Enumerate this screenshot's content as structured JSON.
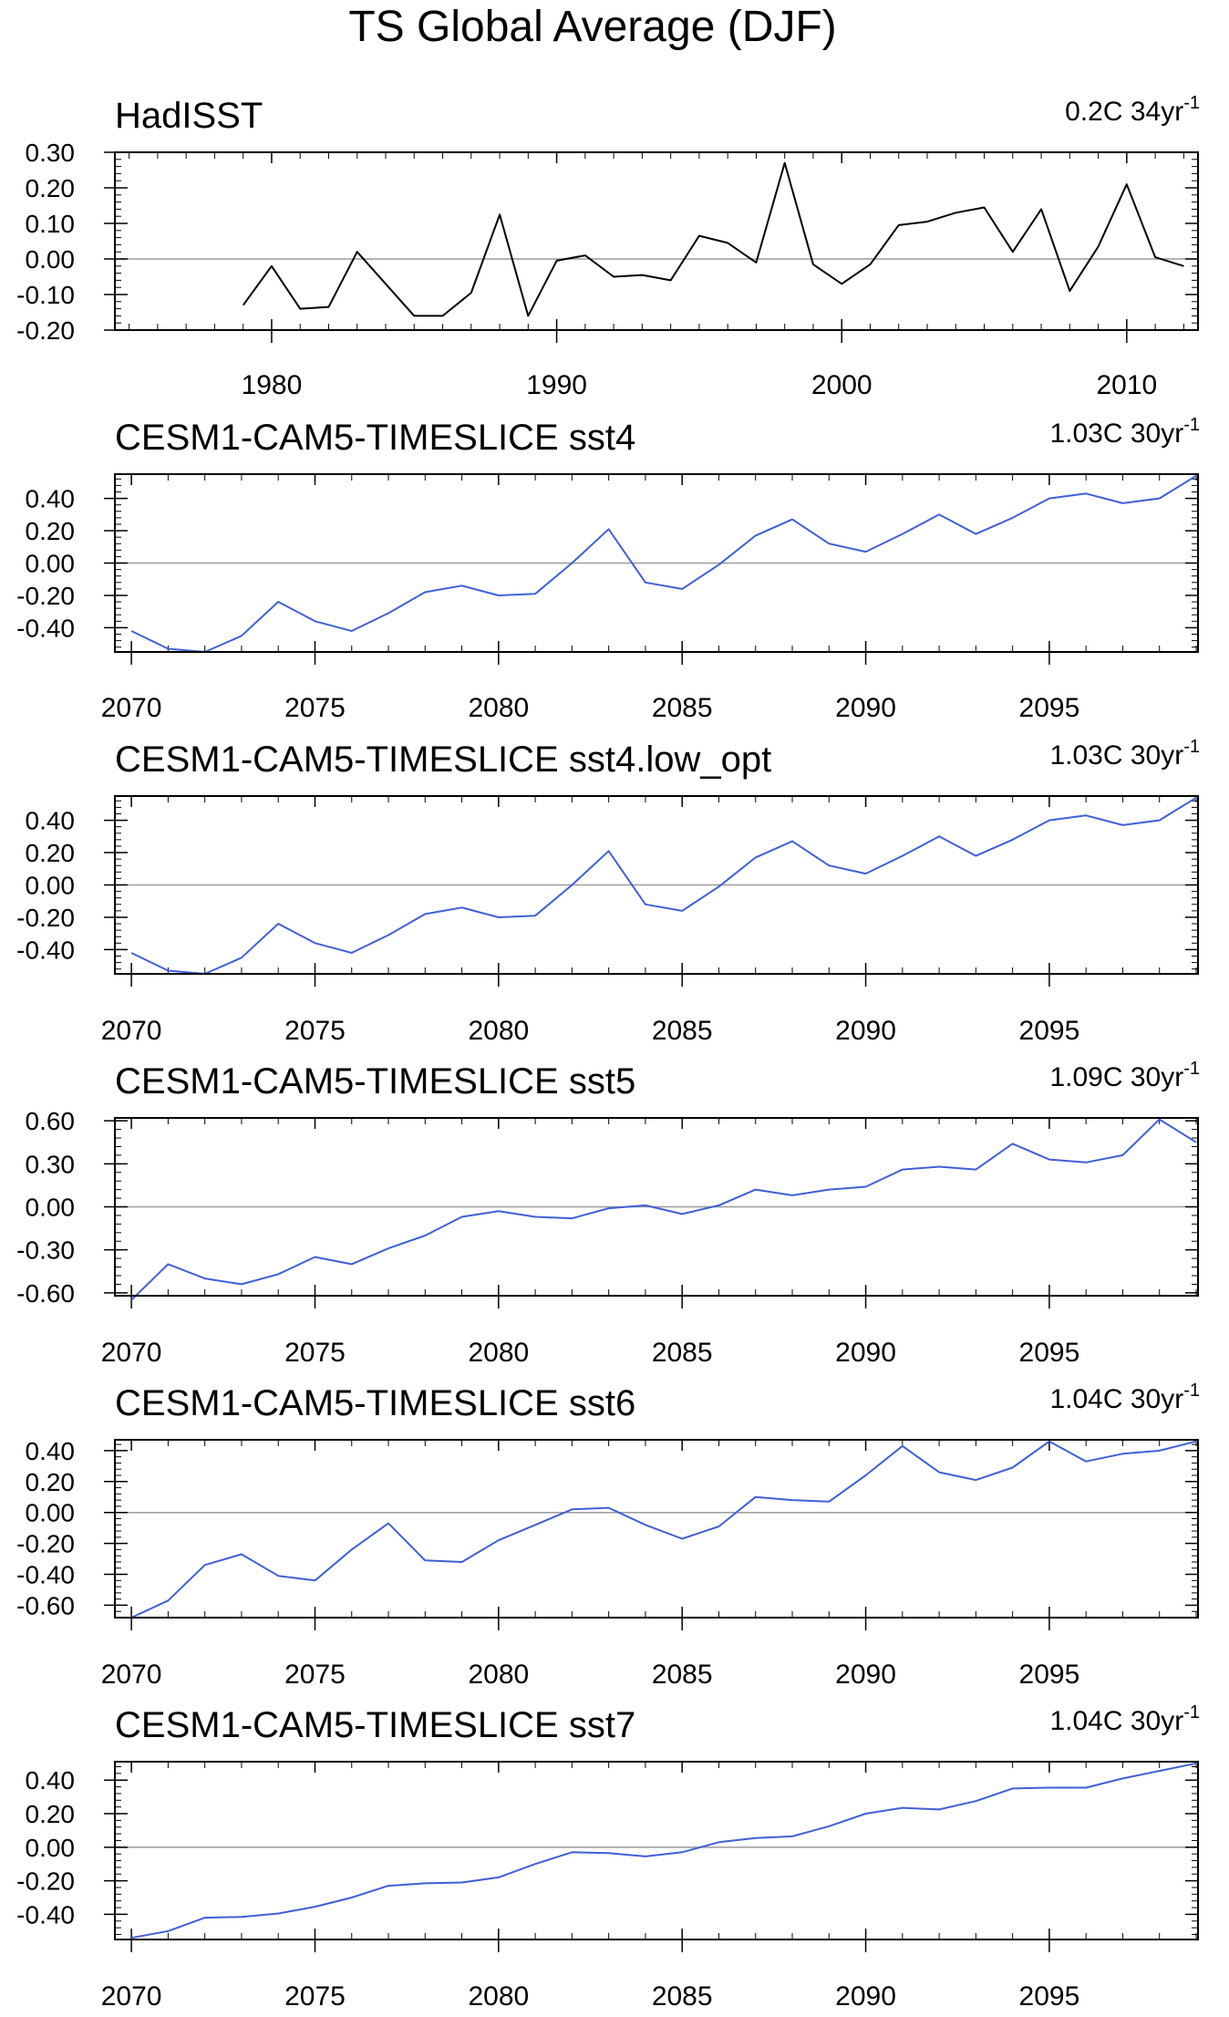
{
  "title": "TS Global Average (DJF)",
  "colors": {
    "observed": "#000000",
    "model": "#3f5fd6",
    "zero_line": "#9a9a9a",
    "frame": "#000000"
  },
  "chart_data": [
    {
      "type": "line",
      "title": "HadISST",
      "trend_value": "0.2C 34yr",
      "trend_exponent": "-1",
      "color": "#000000",
      "x": [
        1979,
        1980,
        1981,
        1982,
        1983,
        1984,
        1985,
        1986,
        1987,
        1988,
        1989,
        1990,
        1991,
        1992,
        1993,
        1994,
        1995,
        1996,
        1997,
        1998,
        1999,
        2000,
        2001,
        2002,
        2003,
        2004,
        2005,
        2006,
        2007,
        2008,
        2009,
        2010,
        2011,
        2012
      ],
      "y": [
        -0.13,
        -0.02,
        -0.14,
        -0.135,
        0.02,
        -0.07,
        -0.16,
        -0.16,
        -0.095,
        0.125,
        -0.16,
        -0.005,
        0.01,
        -0.05,
        -0.045,
        -0.06,
        0.065,
        0.045,
        -0.01,
        0.27,
        -0.015,
        -0.07,
        -0.015,
        0.095,
        0.105,
        0.13,
        0.145,
        0.02,
        0.14,
        -0.09,
        0.035,
        0.21,
        0.005,
        -0.02
      ],
      "xlim": [
        1974.5,
        2012.5
      ],
      "ylim": [
        -0.2,
        0.3
      ],
      "yticks": [
        -0.2,
        -0.1,
        0.0,
        0.1,
        0.2,
        0.3
      ],
      "ytick_labels": [
        "-0.20",
        "-0.10",
        "0.00",
        "0.10",
        "0.20",
        "0.30"
      ],
      "xticks": [
        1980,
        1990,
        2000,
        2010
      ],
      "xtick_labels": [
        "1980",
        "1990",
        "2000",
        "2010"
      ],
      "grid": false
    },
    {
      "type": "line",
      "title": "CESM1-CAM5-TIMESLICE sst4",
      "trend_value": "1.03C 30yr",
      "trend_exponent": "-1",
      "color": "#3f5fd6",
      "x": [
        2070,
        2071,
        2072,
        2073,
        2074,
        2075,
        2076,
        2077,
        2078,
        2079,
        2080,
        2081,
        2082,
        2083,
        2084,
        2085,
        2086,
        2087,
        2088,
        2089,
        2090,
        2091,
        2092,
        2093,
        2094,
        2095,
        2096,
        2097,
        2098,
        2099
      ],
      "y": [
        -0.42,
        -0.53,
        -0.55,
        -0.45,
        -0.24,
        -0.36,
        -0.42,
        -0.31,
        -0.18,
        -0.14,
        -0.2,
        -0.19,
        0.0,
        0.21,
        -0.12,
        -0.16,
        -0.01,
        0.17,
        0.27,
        0.12,
        0.07,
        0.18,
        0.3,
        0.18,
        0.28,
        0.4,
        0.43,
        0.37,
        0.4,
        0.54
      ],
      "xlim": [
        2069.55,
        2099.05
      ],
      "ylim": [
        -0.55,
        0.55
      ],
      "yticks": [
        -0.4,
        -0.2,
        0.0,
        0.2,
        0.4
      ],
      "ytick_labels": [
        "-0.40",
        "-0.20",
        "0.00",
        "0.20",
        "0.40"
      ],
      "xticks": [
        2070,
        2075,
        2080,
        2085,
        2090,
        2095
      ],
      "xtick_labels": [
        "2070",
        "2075",
        "2080",
        "2085",
        "2090",
        "2095"
      ],
      "grid": false
    },
    {
      "type": "line",
      "title": "CESM1-CAM5-TIMESLICE sst4.low_opt",
      "trend_value": "1.03C 30yr",
      "trend_exponent": "-1",
      "color": "#3f5fd6",
      "x": [
        2070,
        2071,
        2072,
        2073,
        2074,
        2075,
        2076,
        2077,
        2078,
        2079,
        2080,
        2081,
        2082,
        2083,
        2084,
        2085,
        2086,
        2087,
        2088,
        2089,
        2090,
        2091,
        2092,
        2093,
        2094,
        2095,
        2096,
        2097,
        2098,
        2099
      ],
      "y": [
        -0.42,
        -0.53,
        -0.55,
        -0.45,
        -0.24,
        -0.36,
        -0.42,
        -0.31,
        -0.18,
        -0.14,
        -0.2,
        -0.19,
        0.0,
        0.21,
        -0.12,
        -0.16,
        -0.01,
        0.17,
        0.27,
        0.12,
        0.07,
        0.18,
        0.3,
        0.18,
        0.28,
        0.4,
        0.43,
        0.37,
        0.4,
        0.54
      ],
      "xlim": [
        2069.55,
        2099.05
      ],
      "ylim": [
        -0.55,
        0.55
      ],
      "yticks": [
        -0.4,
        -0.2,
        0.0,
        0.2,
        0.4
      ],
      "ytick_labels": [
        "-0.40",
        "-0.20",
        "0.00",
        "0.20",
        "0.40"
      ],
      "xticks": [
        2070,
        2075,
        2080,
        2085,
        2090,
        2095
      ],
      "xtick_labels": [
        "2070",
        "2075",
        "2080",
        "2085",
        "2090",
        "2095"
      ],
      "grid": false
    },
    {
      "type": "line",
      "title": "CESM1-CAM5-TIMESLICE sst5",
      "trend_value": "1.09C 30yr",
      "trend_exponent": "-1",
      "color": "#3f5fd6",
      "x": [
        2070,
        2071,
        2072,
        2073,
        2074,
        2075,
        2076,
        2077,
        2078,
        2079,
        2080,
        2081,
        2082,
        2083,
        2084,
        2085,
        2086,
        2087,
        2088,
        2089,
        2090,
        2091,
        2092,
        2093,
        2094,
        2095,
        2096,
        2097,
        2098,
        2099
      ],
      "y": [
        -0.65,
        -0.4,
        -0.5,
        -0.54,
        -0.47,
        -0.35,
        -0.4,
        -0.29,
        -0.2,
        -0.07,
        -0.03,
        -0.07,
        -0.08,
        -0.01,
        0.01,
        -0.05,
        0.01,
        0.12,
        0.08,
        0.12,
        0.14,
        0.26,
        0.28,
        0.26,
        0.44,
        0.33,
        0.31,
        0.36,
        0.61,
        0.45
      ],
      "xlim": [
        2069.55,
        2099.05
      ],
      "ylim": [
        -0.62,
        0.62
      ],
      "yticks": [
        -0.6,
        -0.3,
        0.0,
        0.3,
        0.6
      ],
      "ytick_labels": [
        "-0.60",
        "-0.30",
        "0.00",
        "0.30",
        "0.60"
      ],
      "xticks": [
        2070,
        2075,
        2080,
        2085,
        2090,
        2095
      ],
      "xtick_labels": [
        "2070",
        "2075",
        "2080",
        "2085",
        "2090",
        "2095"
      ],
      "grid": false
    },
    {
      "type": "line",
      "title": "CESM1-CAM5-TIMESLICE sst6",
      "trend_value": "1.04C 30yr",
      "trend_exponent": "-1",
      "color": "#3f5fd6",
      "x": [
        2070,
        2071,
        2072,
        2073,
        2074,
        2075,
        2076,
        2077,
        2078,
        2079,
        2080,
        2081,
        2082,
        2083,
        2084,
        2085,
        2086,
        2087,
        2088,
        2089,
        2090,
        2091,
        2092,
        2093,
        2094,
        2095,
        2096,
        2097,
        2098,
        2099
      ],
      "y": [
        -0.68,
        -0.57,
        -0.34,
        -0.27,
        -0.41,
        -0.44,
        -0.24,
        -0.07,
        -0.31,
        -0.32,
        -0.18,
        -0.08,
        0.02,
        0.03,
        -0.08,
        -0.17,
        -0.09,
        0.1,
        0.08,
        0.07,
        0.24,
        0.43,
        0.26,
        0.21,
        0.29,
        0.46,
        0.33,
        0.38,
        0.4,
        0.46
      ],
      "xlim": [
        2069.55,
        2099.05
      ],
      "ylim": [
        -0.68,
        0.47
      ],
      "yticks": [
        -0.6,
        -0.4,
        -0.2,
        0.0,
        0.2,
        0.4
      ],
      "ytick_labels": [
        "-0.60",
        "-0.40",
        "-0.20",
        "0.00",
        "0.20",
        "0.40"
      ],
      "xticks": [
        2070,
        2075,
        2080,
        2085,
        2090,
        2095
      ],
      "xtick_labels": [
        "2070",
        "2075",
        "2080",
        "2085",
        "2090",
        "2095"
      ],
      "grid": false
    },
    {
      "type": "line",
      "title": "CESM1-CAM5-TIMESLICE sst7",
      "trend_value": "1.04C 30yr",
      "trend_exponent": "-1",
      "color": "#3f5fd6",
      "x": [
        2070,
        2071,
        2072,
        2073,
        2074,
        2075,
        2076,
        2077,
        2078,
        2079,
        2080,
        2081,
        2082,
        2083,
        2084,
        2085,
        2086,
        2087,
        2088,
        2089,
        2090,
        2091,
        2092,
        2093,
        2094,
        2095,
        2096,
        2097,
        2098,
        2099
      ],
      "y": [
        -0.54,
        -0.5,
        -0.42,
        -0.415,
        -0.395,
        -0.355,
        -0.3,
        -0.23,
        -0.215,
        -0.21,
        -0.18,
        -0.1,
        -0.03,
        -0.035,
        -0.055,
        -0.03,
        0.03,
        0.055,
        0.065,
        0.125,
        0.2,
        0.235,
        0.225,
        0.275,
        0.35,
        0.355,
        0.355,
        0.41,
        0.455,
        0.5
      ],
      "xlim": [
        2069.55,
        2099.05
      ],
      "ylim": [
        -0.55,
        0.51
      ],
      "yticks": [
        -0.4,
        -0.2,
        0.0,
        0.2,
        0.4
      ],
      "ytick_labels": [
        "-0.40",
        "-0.20",
        "0.00",
        "0.20",
        "0.40"
      ],
      "xticks": [
        2070,
        2075,
        2080,
        2085,
        2090,
        2095
      ],
      "xtick_labels": [
        "2070",
        "2075",
        "2080",
        "2085",
        "2090",
        "2095"
      ],
      "grid": false
    }
  ]
}
